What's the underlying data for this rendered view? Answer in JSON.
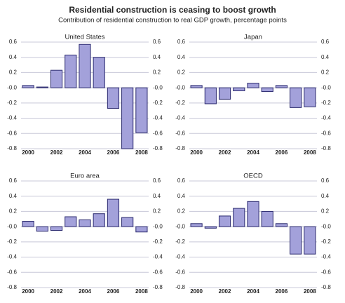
{
  "title": "Residential construction is ceasing to boost growth",
  "subtitle": "Contribution of residential construction to real GDP growth, percentage points",
  "chart_data": [
    {
      "type": "bar",
      "title": "United States",
      "categories": [
        "2000",
        null,
        "2002",
        null,
        "2004",
        null,
        "2006",
        null,
        "2008"
      ],
      "values": [
        0.03,
        0.01,
        0.23,
        0.43,
        0.57,
        0.4,
        -0.27,
        -0.8,
        -0.59
      ],
      "color": "#a3a1da",
      "ylim": [
        -0.8,
        0.6
      ],
      "yticks": [
        0.6,
        0.4,
        0.2,
        {
          "value": 0,
          "label": "-0.0"
        },
        -0.2,
        -0.4,
        -0.6,
        -0.8
      ],
      "grid": true
    },
    {
      "type": "bar",
      "title": "Japan",
      "categories": [
        "2000",
        null,
        "2002",
        null,
        "2004",
        null,
        "2006",
        null,
        "2008"
      ],
      "values": [
        0.03,
        -0.21,
        -0.15,
        -0.04,
        0.06,
        -0.05,
        0.03,
        -0.26,
        -0.25
      ],
      "color": "#a3a1da",
      "ylim": [
        -0.8,
        0.6
      ],
      "yticks": [
        0.6,
        0.4,
        0.2,
        {
          "value": 0,
          "label": "-0.0"
        },
        -0.2,
        -0.4,
        -0.6,
        -0.8
      ],
      "grid": true
    },
    {
      "type": "bar",
      "title": "Euro area",
      "categories": [
        "2000",
        null,
        "2002",
        null,
        "2004",
        null,
        "2006",
        null,
        "2008"
      ],
      "values": [
        0.07,
        -0.06,
        -0.05,
        0.13,
        0.09,
        0.17,
        0.36,
        0.12,
        -0.07
      ],
      "color": "#a3a1da",
      "ylim": [
        -0.8,
        0.6
      ],
      "yticks": [
        0.6,
        0.4,
        0.2,
        {
          "value": 0,
          "label": "-0.0"
        },
        -0.2,
        -0.4,
        -0.6,
        -0.8
      ],
      "grid": true
    },
    {
      "type": "bar",
      "title": "OECD",
      "categories": [
        "2000",
        null,
        "2002",
        null,
        "2004",
        null,
        "2006",
        null,
        "2008"
      ],
      "values": [
        0.04,
        -0.02,
        0.14,
        0.24,
        0.33,
        0.2,
        0.04,
        -0.36,
        -0.36
      ],
      "color": "#a3a1da",
      "ylim": [
        -0.8,
        0.6
      ],
      "yticks": [
        0.6,
        0.4,
        0.2,
        {
          "value": 0,
          "label": "-0.0"
        },
        -0.2,
        -0.4,
        -0.6,
        -0.8
      ],
      "grid": true
    }
  ]
}
